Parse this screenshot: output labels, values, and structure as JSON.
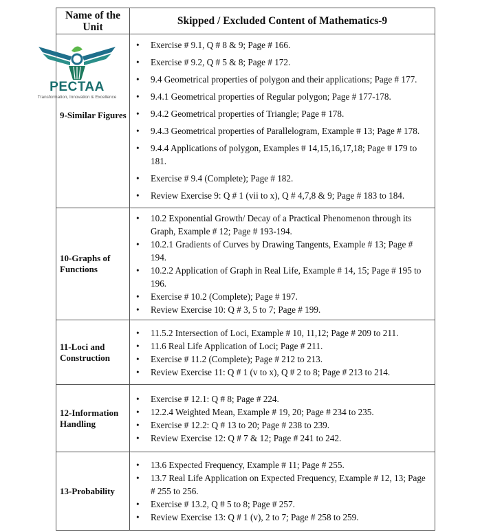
{
  "header": {
    "col1": "Name of the Unit",
    "col2": "Skipped / Excluded Content of Mathematics-9"
  },
  "logo": {
    "name": "PECTAA",
    "tagline": "Transformation, Innovation & Excellence"
  },
  "rows": [
    {
      "unit": "9-Similar Figures",
      "items": [
        "Exercise # 9.1, Q # 8 & 9; Page # 166.",
        "Exercise # 9.2, Q # 5 & 8; Page # 172.",
        "9.4 Geometrical properties of polygon and their applications; Page # 177.",
        "9.4.1 Geometrical properties of Regular polygon; Page # 177-178.",
        "9.4.2 Geometrical properties of Triangle; Page # 178.",
        "9.4.3 Geometrical properties of Parallelogram, Example # 13; Page # 178.",
        "9.4.4 Applications of polygon, Examples # 14,15,16,17,18; Page # 179 to 181.",
        "Exercise # 9.4 (Complete); Page # 182.",
        "Review Exercise 9: Q # 1 (vii to x), Q # 4,7,8 & 9; Page # 183 to 184."
      ]
    },
    {
      "unit": "10-Graphs of Functions",
      "items": [
        "10.2 Exponential Growth/ Decay of a Practical Phenomenon through its Graph, Example # 12; Page # 193-194.",
        "10.2.1 Gradients of Curves by Drawing Tangents, Example # 13; Page # 194.",
        "10.2.2 Application of Graph in Real Life, Example # 14, 15; Page # 195 to 196.",
        "Exercise # 10.2 (Complete); Page # 197.",
        "Review Exercise 10: Q # 3, 5 to 7; Page # 199."
      ]
    },
    {
      "unit": "11-Loci and Construction",
      "items": [
        "11.5.2 Intersection of Loci, Example # 10, 11,12; Page # 209 to 211.",
        "11.6 Real Life Application of Loci; Page # 211.",
        "Exercise # 11.2 (Complete); Page # 212 to 213.",
        "Review Exercise 11: Q # 1 (v to x), Q # 2 to 8; Page # 213 to 214."
      ]
    },
    {
      "unit": "12-Information Handling",
      "items": [
        "Exercise # 12.1: Q # 8; Page # 224.",
        "12.2.4 Weighted Mean, Example # 19, 20; Page # 234 to 235.",
        "Exercise # 12.2: Q # 13 to 20; Page # 238 to 239.",
        "Review Exercise 12: Q # 7 & 12; Page # 241 to 242."
      ]
    },
    {
      "unit": "13-Probability",
      "items": [
        "13.6 Expected Frequency, Example # 11; Page # 255.",
        "13.7 Real Life Application on Expected Frequency, Example # 12, 13; Page # 255 to 256.",
        "Exercise # 13.2, Q # 5 to 8; Page # 257.",
        "Review Exercise 13: Q # 1 (v), 2 to 7; Page # 258 to 259."
      ]
    }
  ]
}
